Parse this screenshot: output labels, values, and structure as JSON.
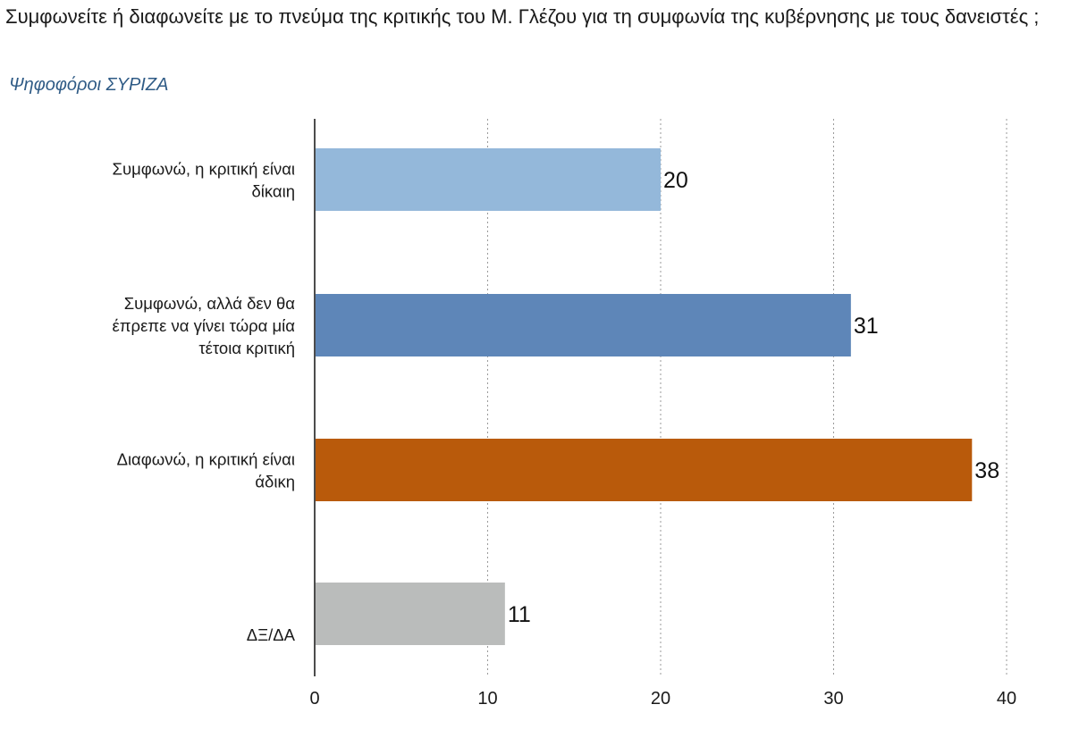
{
  "header": {
    "title": "Συμφωνείτε ή διαφωνείτε με το πνεύμα της κριτικής του Μ. Γλέζου για τη συμφωνία της κυβέρνησης με τους δανειστές ;",
    "subtitle": "Ψηφοφόροι ΣΥΡΙΖΑ"
  },
  "chart_data": {
    "type": "bar",
    "orientation": "horizontal",
    "categories": [
      [
        "Συμφωνώ, η κριτική είναι",
        "δίκαιη"
      ],
      [
        "Συμφωνώ, αλλά δεν θα",
        "έπρεπε να γίνει τώρα μία",
        "τέτοια κριτική"
      ],
      [
        "Διαφωνώ, η κριτική είναι",
        "άδικη"
      ],
      [
        "ΔΞ/ΔΑ"
      ]
    ],
    "values": [
      20,
      31,
      38,
      11
    ],
    "colors": [
      "#94b8da",
      "#5e86b8",
      "#b95a0b",
      "#babcbb"
    ],
    "xlim": [
      0,
      40
    ],
    "xticks": [
      0,
      10,
      20,
      30,
      40
    ],
    "grid": "vertical-dotted",
    "title": "Συμφωνείτε ή διαφωνείτε με το πνεύμα της κριτικής του Μ. Γλέζου για τη συμφωνία της κυβέρνησης με τους δανειστές ;",
    "subtitle": "Ψηφοφόροι ΣΥΡΙΖΑ",
    "xlabel": "",
    "ylabel": ""
  }
}
